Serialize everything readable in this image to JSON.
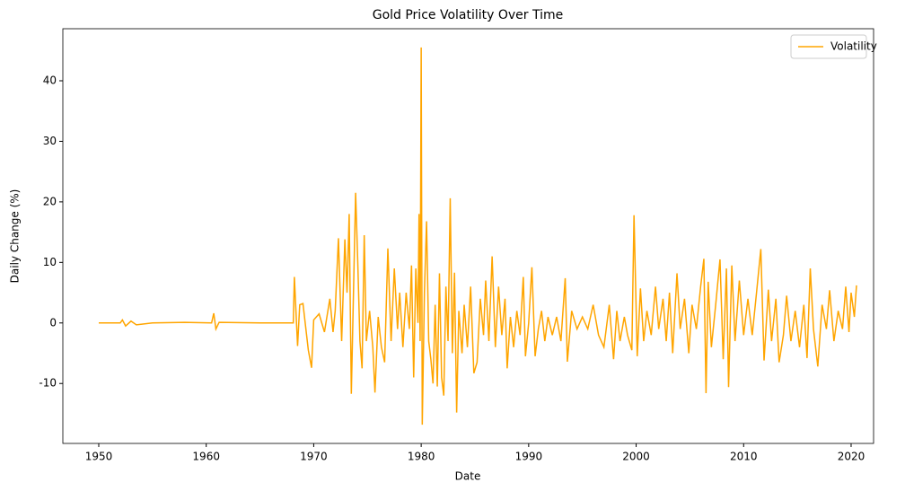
{
  "chart_data": {
    "type": "line",
    "title": "Gold Price Volatility Over Time",
    "xlabel": "Date",
    "ylabel": "Daily Change (%)",
    "x": [
      1950,
      1952.0,
      1952.2,
      1952.5,
      1953.0,
      1953.5,
      1955,
      1958,
      1960.5,
      1960.7,
      1960.9,
      1961.2,
      1965,
      1968.1,
      1968.2,
      1968.5,
      1968.7,
      1969,
      1969.5,
      1969.8,
      1970,
      1970.5,
      1971,
      1971.5,
      1971.8,
      1972,
      1972.3,
      1972.6,
      1972.9,
      1973.1,
      1973.3,
      1973.5,
      1973.7,
      1973.9,
      1974.1,
      1974.3,
      1974.5,
      1974.7,
      1974.9,
      1975.2,
      1975.5,
      1975.7,
      1976,
      1976.3,
      1976.6,
      1976.9,
      1977.2,
      1977.5,
      1977.8,
      1978,
      1978.3,
      1978.6,
      1978.9,
      1979.1,
      1979.3,
      1979.5,
      1979.7,
      1979.8,
      1979.9,
      1980.0,
      1980.1,
      1980.3,
      1980.5,
      1980.7,
      1980.9,
      1981.1,
      1981.3,
      1981.5,
      1981.7,
      1981.9,
      1982.1,
      1982.3,
      1982.5,
      1982.7,
      1982.9,
      1983.1,
      1983.3,
      1983.5,
      1983.8,
      1984,
      1984.3,
      1984.6,
      1984.9,
      1985.2,
      1985.5,
      1985.8,
      1986,
      1986.3,
      1986.6,
      1986.9,
      1987.2,
      1987.5,
      1987.8,
      1988,
      1988.3,
      1988.6,
      1988.9,
      1989.2,
      1989.5,
      1989.7,
      1990,
      1990.3,
      1990.6,
      1990.9,
      1991.2,
      1991.5,
      1991.8,
      1992.2,
      1992.6,
      1993,
      1993.4,
      1993.6,
      1994,
      1994.5,
      1995,
      1995.5,
      1996,
      1996.5,
      1997,
      1997.5,
      1997.9,
      1998.2,
      1998.5,
      1998.9,
      1999.2,
      1999.6,
      1999.8,
      2000.1,
      2000.4,
      2000.7,
      2001,
      2001.4,
      2001.8,
      2002.1,
      2002.5,
      2002.8,
      2003.1,
      2003.4,
      2003.8,
      2004.1,
      2004.5,
      2004.9,
      2005.2,
      2005.6,
      2006,
      2006.3,
      2006.5,
      2006.7,
      2007,
      2007.4,
      2007.8,
      2008.1,
      2008.4,
      2008.6,
      2008.9,
      2009.2,
      2009.6,
      2010,
      2010.4,
      2010.8,
      2011.2,
      2011.6,
      2011.9,
      2012.3,
      2012.6,
      2013,
      2013.3,
      2013.7,
      2014,
      2014.4,
      2014.8,
      2015.2,
      2015.6,
      2015.9,
      2016.2,
      2016.5,
      2016.9,
      2017.3,
      2017.7,
      2018,
      2018.4,
      2018.8,
      2019.2,
      2019.5,
      2019.8,
      2020,
      2020.3,
      2020.5
    ],
    "series": [
      {
        "name": "Volatility",
        "color": "#ffa500",
        "values": [
          0,
          0,
          0.5,
          -0.5,
          0.3,
          -0.3,
          0,
          0.1,
          0,
          1.6,
          -1.0,
          0.1,
          0,
          0,
          7.6,
          -3.8,
          3,
          3.2,
          -4.5,
          -7.4,
          0.5,
          1.5,
          -1.5,
          4,
          -1.5,
          2,
          14,
          -3,
          13.8,
          5,
          18,
          -11.7,
          5,
          21.5,
          10,
          -3,
          -7.5,
          14.5,
          -3,
          2,
          -4,
          -11.5,
          1,
          -4,
          -6.5,
          12.3,
          -3,
          9,
          -1,
          5,
          -4,
          5,
          -1,
          9.5,
          -9,
          9,
          0,
          18,
          -3,
          45.5,
          -16.8,
          5,
          16.8,
          -3,
          -6,
          -10,
          3,
          -10.5,
          8.2,
          -9,
          -12,
          6,
          -3,
          20.6,
          -5,
          8.3,
          -14.8,
          2,
          -5,
          3,
          -4,
          6,
          -8.3,
          -6.5,
          4,
          -2,
          7,
          -3,
          11,
          -4,
          6,
          -2,
          4,
          -7.5,
          1,
          -4,
          2,
          -2,
          7.6,
          -5.5,
          0,
          9.2,
          -5.5,
          -1,
          2,
          -3,
          1,
          -2,
          1,
          -3,
          7.4,
          -6.4,
          2,
          -1,
          1,
          -1,
          3,
          -2,
          -4,
          3,
          -6,
          2,
          -3,
          1,
          -2,
          -4.5,
          17.8,
          -5.5,
          5.7,
          -3,
          2,
          -2,
          6,
          -1,
          4,
          -3,
          5,
          -5,
          8.2,
          -1,
          4,
          -5,
          3,
          -1,
          6,
          10.6,
          -11.6,
          6.8,
          -4,
          3,
          10.5,
          -6,
          9,
          -10.6,
          9.5,
          -3,
          7,
          -2,
          4,
          -2,
          5,
          12.2,
          -6.2,
          5.5,
          -3,
          4,
          -6.5,
          -2,
          4.5,
          -3,
          2,
          -4,
          3,
          -5.8,
          9,
          -1,
          -7.2,
          3,
          -1,
          5.4,
          -3,
          2,
          -1,
          6,
          -1.5,
          5,
          1,
          6.2
        ]
      }
    ],
    "xlim": [
      1946.66,
      2022.09
    ],
    "xticks": [
      1950,
      1960,
      1970,
      1980,
      1990,
      2000,
      2010,
      2020
    ],
    "ylim": [
      -19.9,
      48.6
    ],
    "yticks": [
      -10,
      0,
      10,
      20,
      30,
      40
    ],
    "legend": "upper right",
    "grid": false
  }
}
